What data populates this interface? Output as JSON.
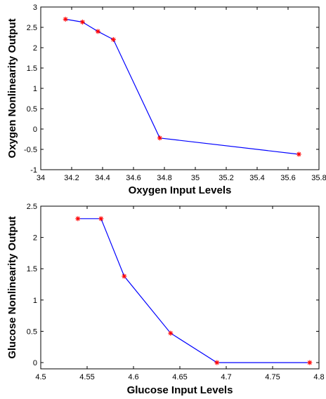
{
  "chart_data": [
    {
      "type": "line",
      "xlabel": "Oxygen Input Levels",
      "ylabel": "Oxygen Nonlinearity Output",
      "xlim": [
        34,
        35.8
      ],
      "ylim": [
        -1,
        3
      ],
      "xticks": [
        34,
        34.2,
        34.4,
        34.6,
        34.8,
        35,
        35.2,
        35.4,
        35.6,
        35.8
      ],
      "xtick_labels": [
        "34",
        "34.2",
        "34.4",
        "34.6",
        "34.8",
        "35",
        "35.2",
        "35.4",
        "35.6",
        "35.8"
      ],
      "yticks": [
        -1,
        -0.5,
        0,
        0.5,
        1,
        1.5,
        2,
        2.5,
        3
      ],
      "ytick_labels": [
        "-1",
        "-0.5",
        "0",
        "0.5",
        "1",
        "1.5",
        "2",
        "2.5",
        "3"
      ],
      "grid": false,
      "series": [
        {
          "x": [
            34.16,
            34.27,
            34.37,
            34.47,
            34.77,
            35.67
          ],
          "y": [
            2.7,
            2.63,
            2.4,
            2.2,
            -0.22,
            -0.62
          ],
          "line_color": "#0000ff",
          "marker": "*",
          "marker_color": "#ff0000"
        }
      ]
    },
    {
      "type": "line",
      "xlabel": "Glucose Input Levels",
      "ylabel": "Glucose Nonlinearity Output",
      "xlim": [
        4.5,
        4.8
      ],
      "ylim": [
        -0.1,
        2.5
      ],
      "xticks": [
        4.5,
        4.55,
        4.6,
        4.65,
        4.7,
        4.75,
        4.8
      ],
      "xtick_labels": [
        "4.5",
        "4.55",
        "4.6",
        "4.65",
        "4.7",
        "4.75",
        "4.8"
      ],
      "yticks": [
        0,
        0.5,
        1,
        1.5,
        2,
        2.5
      ],
      "ytick_labels": [
        "0",
        "0.5",
        "1",
        "1.5",
        "2",
        "2.5"
      ],
      "grid": false,
      "series": [
        {
          "x": [
            4.54,
            4.565,
            4.59,
            4.64,
            4.69,
            4.79
          ],
          "y": [
            2.3,
            2.3,
            1.38,
            0.47,
            0.0,
            0.0
          ],
          "line_color": "#0000ff",
          "marker": "*",
          "marker_color": "#ff0000"
        }
      ]
    }
  ]
}
